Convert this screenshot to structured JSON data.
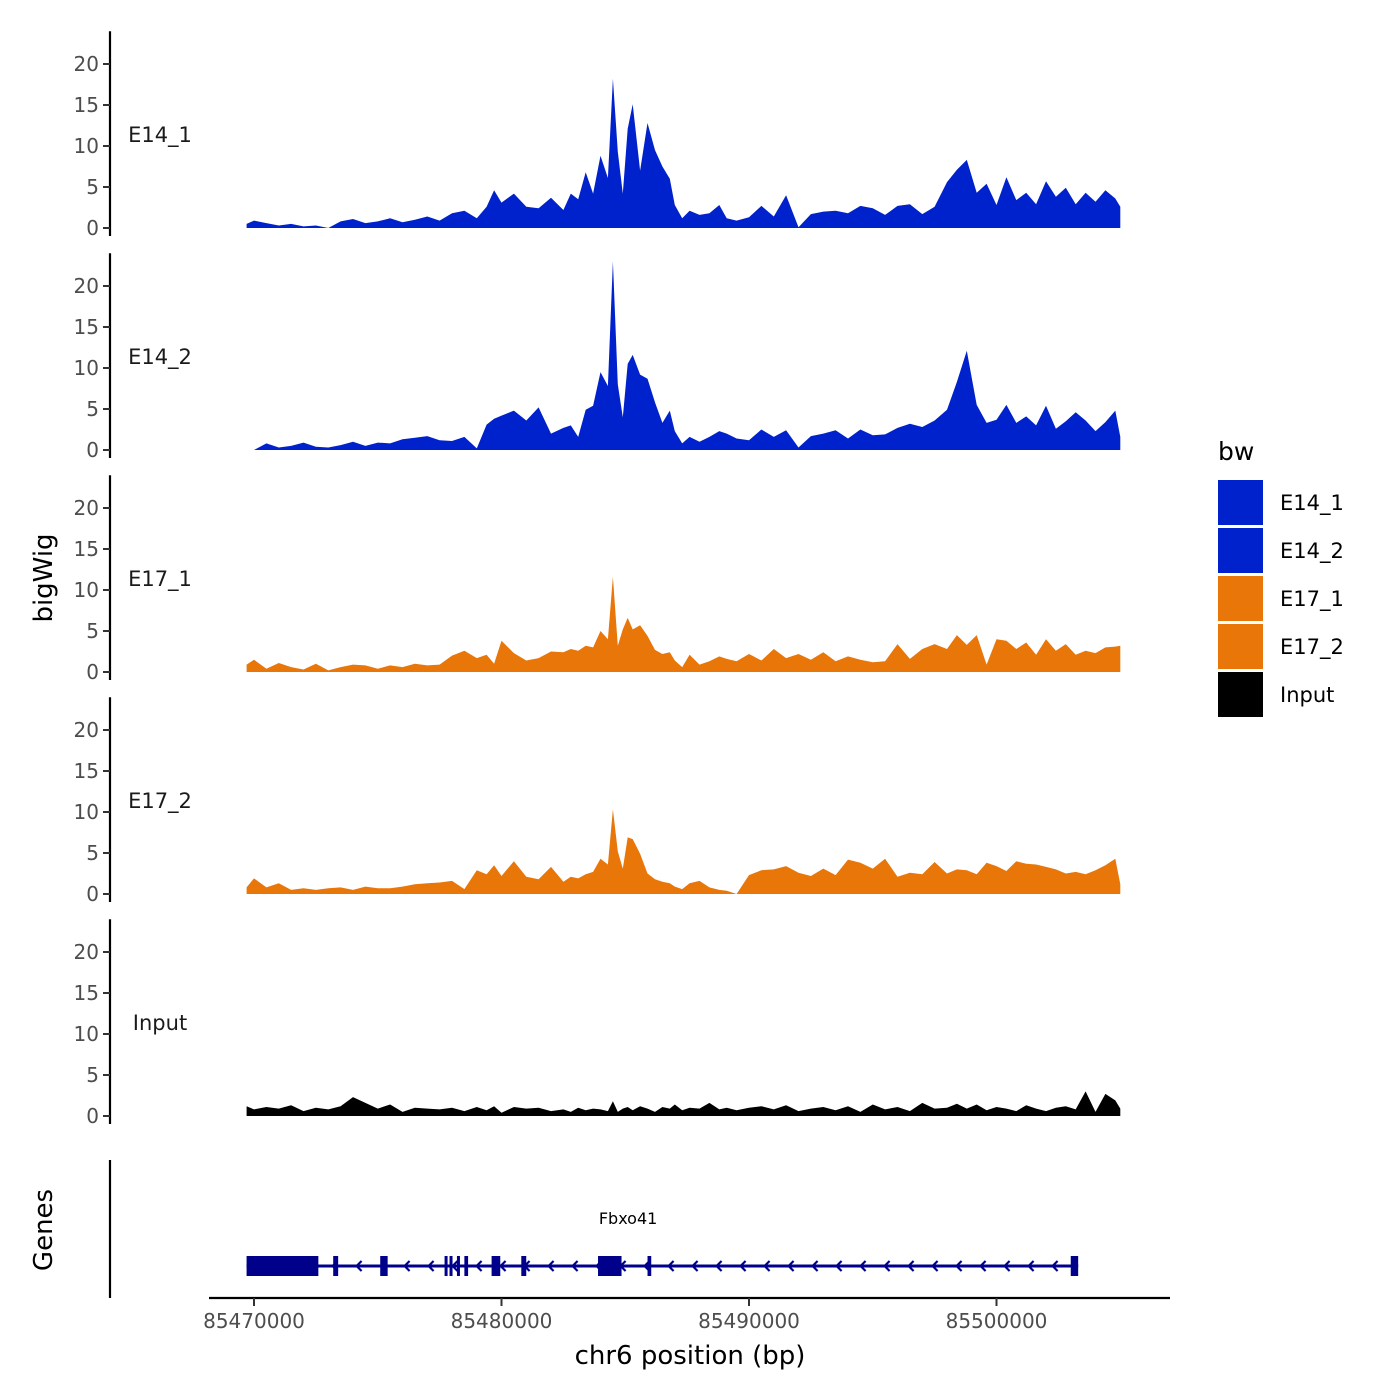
{
  "chart_data": {
    "type": "area",
    "xlabel": "chr6 position (bp)",
    "ylabel": "bigWig",
    "genes_label": "Genes",
    "xlim": [
      85468000,
      85507000
    ],
    "x_ticks": [
      85470000,
      85480000,
      85490000,
      85500000
    ],
    "x_tick_labels": [
      "85470000",
      "85480000",
      "85490000",
      "85500000"
    ],
    "ylim": [
      0,
      24
    ],
    "y_ticks": [
      0,
      5,
      10,
      15,
      20
    ],
    "y_tick_labels": [
      "0",
      "5",
      "10",
      "15",
      "20"
    ],
    "legend": {
      "title": "bw",
      "position": "right",
      "entries": [
        {
          "label": "E14_1",
          "color": "#0022CC"
        },
        {
          "label": "E14_2",
          "color": "#0022CC"
        },
        {
          "label": "E17_1",
          "color": "#E87608"
        },
        {
          "label": "E17_2",
          "color": "#E87608"
        },
        {
          "label": "Input",
          "color": "#000000"
        }
      ]
    },
    "series": [
      {
        "name": "E14_1",
        "color": "#0022CC",
        "x": [
          85469700,
          85470000,
          85470500,
          85471000,
          85471500,
          85472000,
          85472500,
          85473000,
          85473500,
          85474000,
          85474500,
          85475000,
          85475500,
          85476000,
          85476500,
          85477000,
          85477500,
          85478000,
          85478500,
          85479000,
          85479400,
          85479700,
          85480000,
          85480500,
          85481000,
          85481500,
          85482000,
          85482500,
          85482800,
          85483100,
          85483400,
          85483700,
          85484000,
          85484300,
          85484500,
          85484700,
          85484900,
          85485100,
          85485300,
          85485600,
          85485900,
          85486200,
          85486500,
          85486800,
          85487000,
          85487300,
          85487600,
          85488000,
          85488400,
          85488800,
          85489100,
          85489500,
          85490000,
          85490500,
          85491000,
          85491500,
          85492000,
          85492500,
          85493000,
          85493500,
          85494000,
          85494500,
          85495000,
          85495500,
          85496000,
          85496500,
          85497000,
          85497500,
          85498000,
          85498400,
          85498800,
          85499200,
          85499600,
          85500000,
          85500400,
          85500800,
          85501200,
          85501600,
          85502000,
          85502400,
          85502800,
          85503200,
          85503600,
          85504000,
          85504400,
          85504800,
          85505000
        ],
        "values": [
          0.5,
          0.9,
          0.6,
          0.3,
          0.5,
          0.2,
          0.3,
          0.0,
          0.8,
          1.1,
          0.6,
          0.8,
          1.2,
          0.7,
          1.0,
          1.4,
          0.9,
          1.8,
          2.1,
          1.2,
          2.6,
          4.6,
          3.1,
          4.2,
          2.6,
          2.4,
          3.7,
          2.2,
          4.2,
          3.5,
          6.8,
          4.2,
          8.8,
          6.1,
          18.2,
          9.3,
          4.2,
          12.1,
          15.1,
          7.0,
          12.8,
          9.5,
          7.5,
          6.0,
          2.8,
          1.2,
          2.1,
          1.6,
          1.8,
          2.8,
          1.2,
          0.9,
          1.3,
          2.7,
          1.4,
          4.0,
          0.1,
          1.7,
          2.0,
          2.1,
          1.8,
          2.7,
          2.4,
          1.6,
          2.7,
          2.9,
          1.7,
          2.6,
          5.6,
          7.1,
          8.3,
          4.3,
          5.4,
          2.8,
          6.2,
          3.4,
          4.3,
          2.9,
          5.7,
          3.8,
          4.9,
          2.9,
          4.3,
          3.2,
          4.6,
          3.6,
          2.6
        ]
      },
      {
        "name": "E14_2",
        "color": "#0022CC",
        "x": [
          85469700,
          85470000,
          85470500,
          85471000,
          85471500,
          85472000,
          85472500,
          85473000,
          85473500,
          85474000,
          85474500,
          85475000,
          85475500,
          85476000,
          85476500,
          85477000,
          85477500,
          85478000,
          85478500,
          85479000,
          85479400,
          85479700,
          85480000,
          85480500,
          85481000,
          85481500,
          85482000,
          85482500,
          85482800,
          85483100,
          85483400,
          85483700,
          85484000,
          85484300,
          85484500,
          85484700,
          85484900,
          85485100,
          85485300,
          85485600,
          85485900,
          85486200,
          85486500,
          85486800,
          85487000,
          85487300,
          85487600,
          85488000,
          85488400,
          85488800,
          85489100,
          85489500,
          85490000,
          85490500,
          85491000,
          85491500,
          85492000,
          85492500,
          85493000,
          85493500,
          85494000,
          85494500,
          85495000,
          85495500,
          85496000,
          85496500,
          85497000,
          85497500,
          85498000,
          85498400,
          85498800,
          85499200,
          85499600,
          85500000,
          85500400,
          85500800,
          85501200,
          85501600,
          85502000,
          85502400,
          85502800,
          85503200,
          85503600,
          85504000,
          85504400,
          85504800,
          85505000
        ],
        "values": [
          0.0,
          0.0,
          0.8,
          0.3,
          0.5,
          0.9,
          0.4,
          0.3,
          0.6,
          1.0,
          0.5,
          0.9,
          0.8,
          1.3,
          1.5,
          1.7,
          1.2,
          1.1,
          1.6,
          0.2,
          3.1,
          3.8,
          4.2,
          4.8,
          3.6,
          5.2,
          2.0,
          2.7,
          3.0,
          1.6,
          4.9,
          5.4,
          9.5,
          7.8,
          23.0,
          8.0,
          4.0,
          10.5,
          11.6,
          9.2,
          8.7,
          5.8,
          3.3,
          4.8,
          2.3,
          0.8,
          1.6,
          1.0,
          1.6,
          2.3,
          2.0,
          1.4,
          1.2,
          2.5,
          1.6,
          2.4,
          0.3,
          1.7,
          2.0,
          2.4,
          1.4,
          2.5,
          1.8,
          1.9,
          2.7,
          3.2,
          2.8,
          3.6,
          4.9,
          8.3,
          12.1,
          5.5,
          3.3,
          3.7,
          5.5,
          3.3,
          4.1,
          3.0,
          5.4,
          2.6,
          3.5,
          4.6,
          3.6,
          2.3,
          3.4,
          4.8,
          1.6
        ]
      },
      {
        "name": "E17_1",
        "color": "#E87608",
        "x": [
          85469700,
          85470000,
          85470500,
          85471000,
          85471500,
          85472000,
          85472500,
          85473000,
          85473500,
          85474000,
          85474500,
          85475000,
          85475500,
          85476000,
          85476500,
          85477000,
          85477500,
          85478000,
          85478500,
          85479000,
          85479400,
          85479700,
          85480000,
          85480500,
          85481000,
          85481500,
          85482000,
          85482500,
          85482800,
          85483100,
          85483400,
          85483700,
          85484000,
          85484300,
          85484500,
          85484700,
          85484900,
          85485100,
          85485300,
          85485600,
          85485900,
          85486200,
          85486500,
          85486800,
          85487000,
          85487300,
          85487600,
          85488000,
          85488400,
          85488800,
          85489100,
          85489500,
          85490000,
          85490500,
          85491000,
          85491500,
          85492000,
          85492500,
          85493000,
          85493500,
          85494000,
          85494500,
          85495000,
          85495500,
          85496000,
          85496500,
          85497000,
          85497500,
          85498000,
          85498400,
          85498800,
          85499200,
          85499600,
          85500000,
          85500400,
          85500800,
          85501200,
          85501600,
          85502000,
          85502400,
          85502800,
          85503200,
          85503600,
          85504000,
          85504400,
          85504800,
          85505000
        ],
        "values": [
          0.9,
          1.5,
          0.4,
          1.1,
          0.6,
          0.3,
          1.0,
          0.2,
          0.6,
          0.9,
          0.8,
          0.4,
          0.8,
          0.6,
          1.0,
          0.8,
          0.9,
          2.0,
          2.6,
          1.7,
          2.1,
          1.0,
          3.8,
          2.3,
          1.4,
          1.7,
          2.5,
          2.4,
          2.8,
          2.6,
          3.2,
          3.0,
          5.0,
          4.0,
          11.6,
          3.2,
          5.2,
          6.6,
          5.2,
          5.7,
          4.4,
          2.7,
          2.2,
          2.4,
          1.4,
          0.6,
          2.1,
          0.9,
          1.3,
          1.9,
          1.6,
          1.3,
          2.2,
          1.4,
          2.8,
          1.7,
          2.2,
          1.5,
          2.4,
          1.3,
          1.9,
          1.5,
          1.2,
          1.3,
          3.4,
          1.6,
          2.8,
          3.4,
          2.8,
          4.5,
          3.3,
          4.5,
          0.9,
          4.0,
          3.8,
          2.8,
          3.6,
          2.1,
          4.0,
          2.6,
          3.4,
          2.1,
          2.6,
          2.3,
          3.0,
          3.1,
          3.2
        ]
      },
      {
        "name": "E17_2",
        "color": "#E87608",
        "x": [
          85469700,
          85470000,
          85470500,
          85471000,
          85471500,
          85472000,
          85472500,
          85473000,
          85473500,
          85474000,
          85474500,
          85475000,
          85475500,
          85476000,
          85476500,
          85477000,
          85477500,
          85478000,
          85478500,
          85479000,
          85479400,
          85479700,
          85480000,
          85480500,
          85481000,
          85481500,
          85482000,
          85482500,
          85482800,
          85483100,
          85483400,
          85483700,
          85484000,
          85484300,
          85484500,
          85484700,
          85484900,
          85485100,
          85485300,
          85485600,
          85485900,
          85486200,
          85486500,
          85486800,
          85487000,
          85487300,
          85487600,
          85488000,
          85488400,
          85488800,
          85489100,
          85489500,
          85490000,
          85490500,
          85491000,
          85491500,
          85492000,
          85492500,
          85493000,
          85493500,
          85494000,
          85494500,
          85495000,
          85495500,
          85496000,
          85496500,
          85497000,
          85497500,
          85498000,
          85498400,
          85498800,
          85499200,
          85499600,
          85500000,
          85500400,
          85500800,
          85501200,
          85501600,
          85502000,
          85502400,
          85502800,
          85503200,
          85503600,
          85504000,
          85504400,
          85504800,
          85505000
        ],
        "values": [
          0.8,
          1.9,
          0.8,
          1.3,
          0.5,
          0.7,
          0.5,
          0.7,
          0.8,
          0.5,
          0.9,
          0.7,
          0.7,
          0.9,
          1.2,
          1.3,
          1.4,
          1.6,
          0.6,
          2.9,
          2.4,
          3.5,
          2.2,
          4.0,
          2.1,
          1.8,
          3.3,
          1.5,
          2.1,
          1.9,
          2.4,
          2.7,
          4.3,
          3.6,
          10.3,
          5.2,
          3.1,
          6.9,
          6.7,
          4.9,
          2.5,
          1.8,
          1.5,
          1.3,
          0.9,
          0.6,
          1.3,
          1.6,
          0.8,
          0.5,
          0.4,
          0.0,
          2.3,
          2.9,
          3.0,
          3.4,
          2.6,
          2.2,
          3.1,
          2.3,
          4.2,
          3.8,
          3.1,
          4.3,
          2.1,
          2.6,
          2.4,
          3.9,
          2.5,
          3.0,
          2.9,
          2.4,
          3.8,
          3.4,
          2.8,
          4.0,
          3.7,
          3.6,
          3.3,
          3.0,
          2.5,
          2.7,
          2.4,
          2.9,
          3.5,
          4.3,
          1.2
        ]
      },
      {
        "name": "Input",
        "color": "#000000",
        "x": [
          85469700,
          85470000,
          85470500,
          85471000,
          85471500,
          85472000,
          85472500,
          85473000,
          85473500,
          85474000,
          85474500,
          85475000,
          85475500,
          85476000,
          85476500,
          85477000,
          85477500,
          85478000,
          85478500,
          85479000,
          85479400,
          85479700,
          85480000,
          85480500,
          85481000,
          85481500,
          85482000,
          85482500,
          85482800,
          85483100,
          85483400,
          85483700,
          85484000,
          85484300,
          85484500,
          85484700,
          85484900,
          85485100,
          85485300,
          85485600,
          85485900,
          85486200,
          85486500,
          85486800,
          85487000,
          85487300,
          85487600,
          85488000,
          85488400,
          85488800,
          85489100,
          85489500,
          85490000,
          85490500,
          85491000,
          85491500,
          85492000,
          85492500,
          85493000,
          85493500,
          85494000,
          85494500,
          85495000,
          85495500,
          85496000,
          85496500,
          85497000,
          85497500,
          85498000,
          85498400,
          85498800,
          85499200,
          85499600,
          85500000,
          85500400,
          85500800,
          85501200,
          85501600,
          85502000,
          85502400,
          85502800,
          85503200,
          85503600,
          85504000,
          85504400,
          85504800,
          85505000
        ],
        "values": [
          1.2,
          0.8,
          1.1,
          0.9,
          1.3,
          0.6,
          1.0,
          0.8,
          1.2,
          2.3,
          1.6,
          0.9,
          1.4,
          0.5,
          1.0,
          0.9,
          0.8,
          1.0,
          0.6,
          1.1,
          0.7,
          1.2,
          0.4,
          1.1,
          0.9,
          1.0,
          0.6,
          0.8,
          0.5,
          1.0,
          0.7,
          0.9,
          0.8,
          0.6,
          1.8,
          0.5,
          0.9,
          1.1,
          0.7,
          1.2,
          0.9,
          0.5,
          1.1,
          0.9,
          1.4,
          0.7,
          1.0,
          0.9,
          1.6,
          0.8,
          1.0,
          0.7,
          1.0,
          1.2,
          0.8,
          1.3,
          0.6,
          0.9,
          1.1,
          0.7,
          1.2,
          0.5,
          1.4,
          0.8,
          1.1,
          0.6,
          1.6,
          0.9,
          1.0,
          1.5,
          0.9,
          1.4,
          0.7,
          1.1,
          0.9,
          0.6,
          1.3,
          0.9,
          0.6,
          1.0,
          1.2,
          0.8,
          3.0,
          0.5,
          2.7,
          1.9,
          0.9
        ]
      }
    ],
    "genes": [
      {
        "name": "Fbxo41",
        "start": 85469700,
        "end": 85503300,
        "strand": "-",
        "exons": [
          [
            85469700,
            85472600
          ],
          [
            85473200,
            85473400
          ],
          [
            85475100,
            85475400
          ],
          [
            85477700,
            85477800
          ],
          [
            85477900,
            85478000
          ],
          [
            85478200,
            85478300
          ],
          [
            85478500,
            85478650
          ],
          [
            85479600,
            85479950
          ],
          [
            85480800,
            85481000
          ],
          [
            85483900,
            85484850
          ],
          [
            85485900,
            85486050
          ],
          [
            85503000,
            85503300
          ]
        ]
      }
    ]
  }
}
